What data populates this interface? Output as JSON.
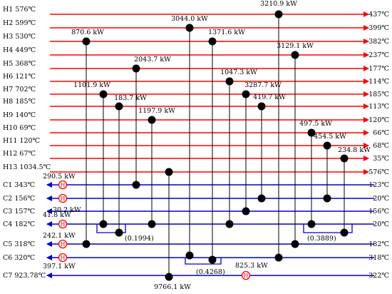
{
  "hot_streams": [
    {
      "name": "H1",
      "tin": "576℃",
      "tout": "437℃"
    },
    {
      "name": "H2",
      "tin": "599℃",
      "tout": "399℃"
    },
    {
      "name": "H3",
      "tin": "530℃",
      "tout": "382℃"
    },
    {
      "name": "H4",
      "tin": "449℃",
      "tout": "237℃"
    },
    {
      "name": "H5",
      "tin": "368℃",
      "tout": "177℃"
    },
    {
      "name": "H6",
      "tin": "121℃",
      "tout": "114℃"
    },
    {
      "name": "H7",
      "tin": "702℃",
      "tout": "185℃"
    },
    {
      "name": "H8",
      "tin": "185℃",
      "tout": "113℃"
    },
    {
      "name": "H9",
      "tin": "140℃",
      "tout": "120℃"
    },
    {
      "name": "H10",
      "tin": "69℃",
      "tout": "66℃"
    },
    {
      "name": "H11",
      "tin": "120℃",
      "tout": "68℃"
    },
    {
      "name": "H12",
      "tin": "67℃",
      "tout": "35℃"
    },
    {
      "name": "H13",
      "tin": "1034.5℃",
      "tout": "576℃"
    }
  ],
  "cold_streams": [
    {
      "name": "C1",
      "tout": "343℃",
      "tin": "123℃"
    },
    {
      "name": "C2",
      "tout": "156℃",
      "tin": "20℃"
    },
    {
      "name": "C3",
      "tout": "157℃",
      "tin": "156℃"
    },
    {
      "name": "C4",
      "tout": "182℃",
      "tin": "20℃"
    },
    {
      "name": "C5",
      "tout": "318℃",
      "tin": "182℃"
    },
    {
      "name": "C6",
      "tout": "320℃",
      "tin": "318℃"
    },
    {
      "name": "C7",
      "tout": "923.78℃",
      "tin": "322℃"
    }
  ],
  "exchangers": [
    {
      "id": "E1",
      "hot": "H1",
      "cold": "C6",
      "duty": "3210.9 kW"
    },
    {
      "id": "E2",
      "hot": "H2",
      "cold": "C6",
      "duty": "3044.0 kW"
    },
    {
      "id": "E3",
      "hot": "H3",
      "cold": "C5",
      "duty": "870.6 kW"
    },
    {
      "id": "E4",
      "hot": "H3",
      "cold": "C6",
      "duty": "1371.6 kW"
    },
    {
      "id": "E5",
      "hot": "H4",
      "cold": "C5",
      "duty": "3129.1 kW"
    },
    {
      "id": "E6",
      "hot": "H5",
      "cold": "C1",
      "duty": "2043.7 kW"
    },
    {
      "id": "E7",
      "hot": "H6",
      "cold": "C4",
      "duty": "1047.3 kW"
    },
    {
      "id": "E8",
      "hot": "H7",
      "cold": "C4",
      "duty": "1101.9 kW"
    },
    {
      "id": "E9",
      "hot": "H7",
      "cold": "C3",
      "duty": "3287.7 kW"
    },
    {
      "id": "E10",
      "hot": "H8",
      "cold": "C4",
      "duty": "183.7 kW"
    },
    {
      "id": "E11",
      "hot": "H8",
      "cold": "C2",
      "duty": "419.7 kW"
    },
    {
      "id": "E12",
      "hot": "H9",
      "cold": "C4",
      "duty": "1197.9 kW"
    },
    {
      "id": "E13",
      "hot": "H10",
      "cold": "C4",
      "duty": "497.5 kW"
    },
    {
      "id": "E14",
      "hot": "H11",
      "cold": "C2",
      "duty": "454.5 kW"
    },
    {
      "id": "E15",
      "hot": "H12",
      "cold": "C4",
      "duty": "234.8 kW"
    },
    {
      "id": "E16",
      "hot": "H13",
      "cold": "C7",
      "duty": "9766.1 kW"
    }
  ],
  "heaters": [
    {
      "stream": "C1",
      "symbol": "H",
      "duty": "290.5 kW"
    },
    {
      "stream": "C2",
      "symbol": "H",
      "duty": "30.2 kW"
    },
    {
      "stream": "C4",
      "symbol": "H",
      "duty": "41.8 kW"
    },
    {
      "stream": "C5",
      "symbol": "H",
      "duty": "242.1 kW"
    },
    {
      "stream": "C6",
      "symbol": "H",
      "duty": "397.1 kW"
    },
    {
      "stream": "C7",
      "symbol": "H",
      "duty": "825.3 kW"
    }
  ],
  "split_ratios": [
    {
      "stream": "C4",
      "ratio": "(0.1994)"
    },
    {
      "stream": "C4",
      "ratio": "(0.3889)"
    },
    {
      "stream": "C6",
      "ratio": "(0.4268)"
    }
  ],
  "colors": {
    "hot": "#ff0000",
    "cold": "#0000cc",
    "heater": "#ff0000",
    "unit": "#000000"
  }
}
